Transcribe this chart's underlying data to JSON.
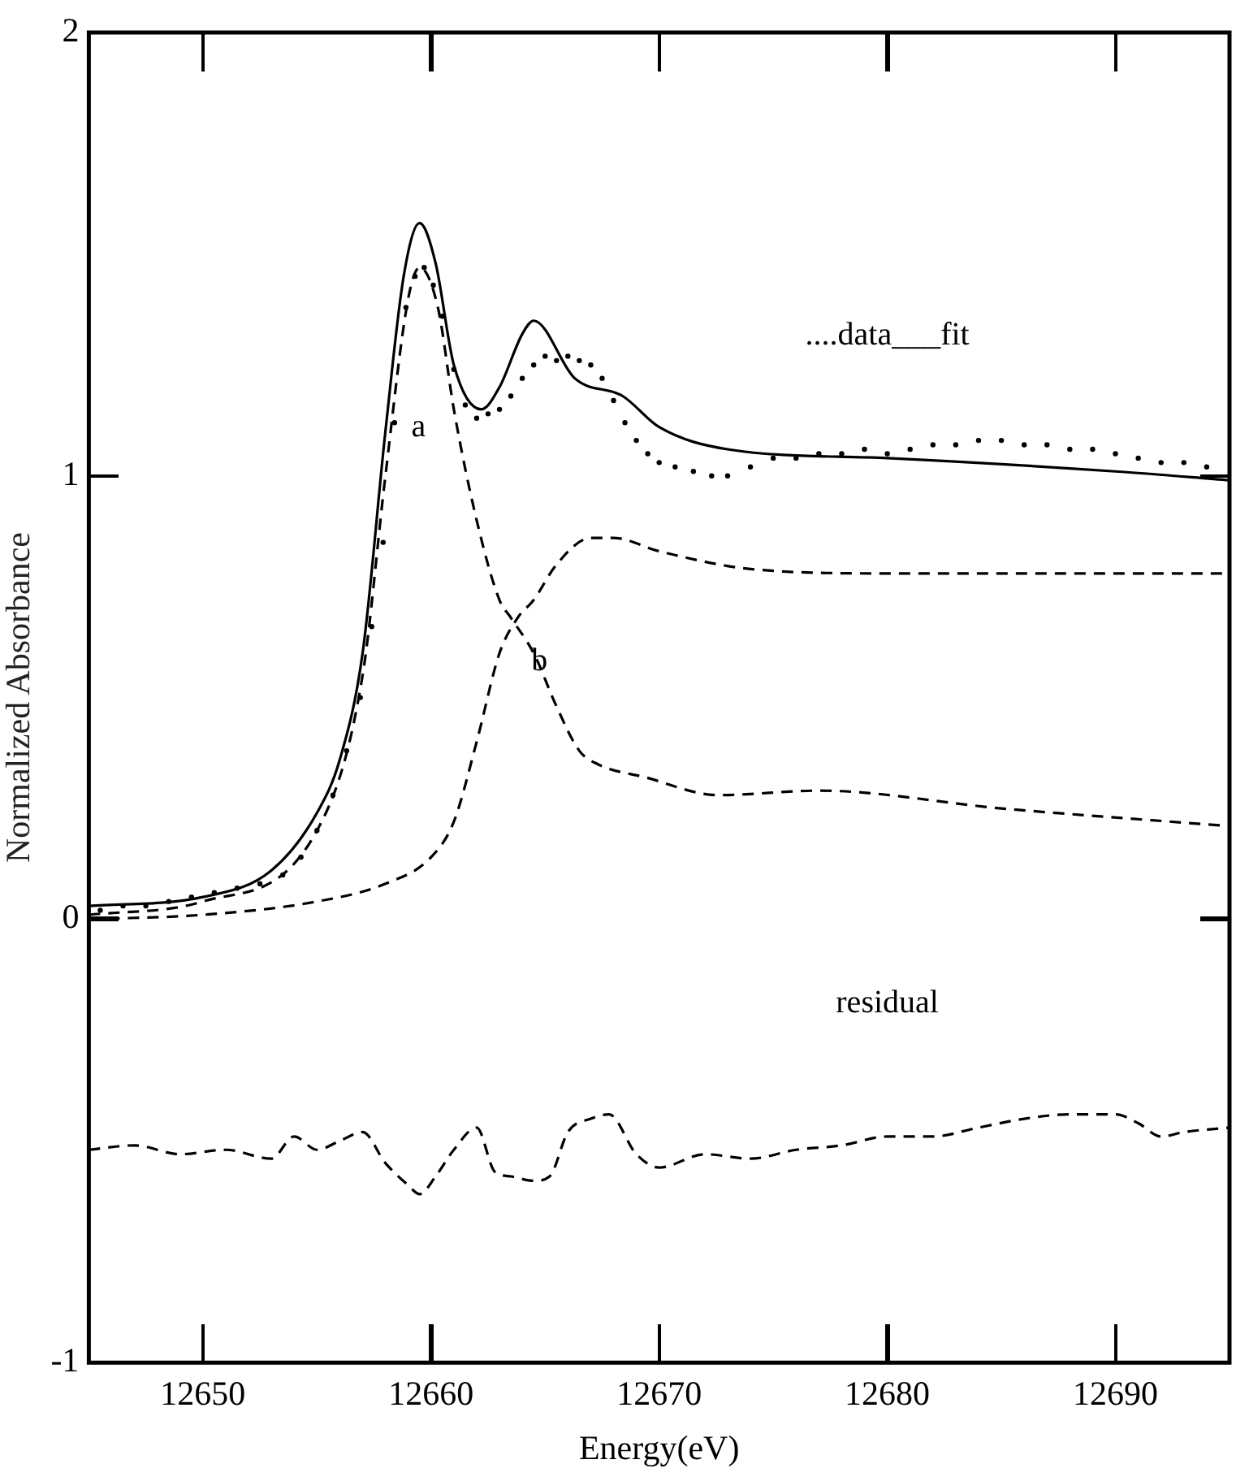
{
  "chart_data": {
    "type": "line",
    "xlabel": "Energy(eV)",
    "ylabel": "Normalized Absorbance",
    "xlim": [
      12645,
      12695
    ],
    "xticks": [
      12650,
      12660,
      12670,
      12680,
      12690
    ],
    "ylim": [
      -1,
      2
    ],
    "yticks": [
      -1,
      0,
      1,
      2
    ],
    "grid": false,
    "legend": false,
    "annotations": [
      "....data___fit",
      "a",
      "b",
      "residual"
    ],
    "series": [
      {
        "type": "scatter",
        "color": "#000000",
        "marker": "circle",
        "x": [
          12645.5,
          12646.5,
          12647.5,
          12648.5,
          12649.5,
          12650.5,
          12651.5,
          12652.5,
          12653.5,
          12654.3,
          12655,
          12655.7,
          12656.3,
          12656.9,
          12657.4,
          12657.9,
          12658.4,
          12658.9,
          12659.3,
          12659.7,
          12660.1,
          12660.5,
          12661,
          12661.5,
          12662,
          12662.5,
          12663,
          12663.5,
          12664,
          12664.5,
          12665,
          12665.5,
          12666,
          12666.5,
          12667,
          12667.5,
          12668,
          12668.5,
          12669,
          12669.5,
          12670,
          12670.7,
          12671.5,
          12672.3,
          12673,
          12674,
          12675,
          12676,
          12677,
          12678,
          12679,
          12680,
          12681,
          12682,
          12683,
          12684,
          12685,
          12686,
          12687,
          12688,
          12689,
          12690,
          12691,
          12692,
          12693,
          12694
        ],
        "values": [
          0.02,
          0.03,
          0.03,
          0.04,
          0.05,
          0.06,
          0.07,
          0.08,
          0.1,
          0.14,
          0.2,
          0.28,
          0.38,
          0.5,
          0.66,
          0.85,
          1.12,
          1.38,
          1.45,
          1.47,
          1.43,
          1.36,
          1.24,
          1.16,
          1.13,
          1.14,
          1.15,
          1.18,
          1.22,
          1.25,
          1.27,
          1.26,
          1.27,
          1.26,
          1.25,
          1.22,
          1.17,
          1.12,
          1.08,
          1.05,
          1.03,
          1.02,
          1.01,
          1.0,
          1.0,
          1.02,
          1.04,
          1.04,
          1.05,
          1.05,
          1.06,
          1.05,
          1.06,
          1.07,
          1.07,
          1.08,
          1.08,
          1.07,
          1.07,
          1.06,
          1.06,
          1.05,
          1.04,
          1.03,
          1.03,
          1.02
        ]
      },
      {
        "type": "line",
        "color": "#000000",
        "line_style": "solid",
        "x": [
          12645,
          12650,
          12653,
          12655,
          12656,
          12657,
          12658,
          12658.8,
          12659.5,
          12660.2,
          12661,
          12662.2,
          12663,
          12664,
          12664.5,
          12666.3,
          12668.4,
          12670,
          12673,
          12680,
          12690,
          12695
        ],
        "values": [
          0.03,
          0.05,
          0.11,
          0.24,
          0.36,
          0.6,
          1.1,
          1.45,
          1.57,
          1.48,
          1.25,
          1.15,
          1.2,
          1.32,
          1.35,
          1.22,
          1.18,
          1.11,
          1.06,
          1.04,
          1.01,
          0.99
        ]
      },
      {
        "type": "line",
        "color": "#000000",
        "line_style": "dashed",
        "x": [
          12645,
          12650,
          12655,
          12657,
          12658,
          12659,
          12659.5,
          12660.3,
          12661,
          12662,
          12663,
          12663.5,
          12664.5,
          12665.5,
          12666.5,
          12667.3,
          12669.4,
          12672.6,
          12677,
          12685,
          12695
        ],
        "values": [
          0.01,
          0.04,
          0.2,
          0.55,
          1.0,
          1.4,
          1.47,
          1.38,
          1.15,
          0.9,
          0.72,
          0.68,
          0.6,
          0.48,
          0.38,
          0.35,
          0.32,
          0.28,
          0.29,
          0.25,
          0.21
        ]
      },
      {
        "type": "line",
        "color": "#000000",
        "line_style": "dashed",
        "x": [
          12645,
          12650,
          12655,
          12658,
          12660,
          12661,
          12662,
          12663,
          12663.8,
          12664.5,
          12665.5,
          12667,
          12668,
          12670,
          12674,
          12680,
          12695
        ],
        "values": [
          0.0,
          0.01,
          0.04,
          0.08,
          0.14,
          0.22,
          0.4,
          0.6,
          0.68,
          0.72,
          0.8,
          0.86,
          0.86,
          0.83,
          0.79,
          0.78,
          0.78
        ]
      },
      {
        "type": "line",
        "color": "#000000",
        "line_style": "dashed",
        "x": [
          12645,
          12647,
          12649,
          12651,
          12653,
          12654,
          12655,
          12656,
          12657,
          12658,
          12659,
          12659.5,
          12660.2,
          12661,
          12662,
          12662.8,
          12663.5,
          12664.5,
          12665.2,
          12666,
          12667,
          12667.8,
          12669,
          12670,
          12672,
          12674,
          12676,
          12678,
          12680,
          12682,
          12684,
          12686,
          12688,
          12690,
          12691,
          12692,
          12693,
          12695
        ],
        "values": [
          -0.52,
          -0.51,
          -0.53,
          -0.52,
          -0.54,
          -0.49,
          -0.52,
          -0.5,
          -0.48,
          -0.55,
          -0.6,
          -0.62,
          -0.58,
          -0.52,
          -0.47,
          -0.57,
          -0.58,
          -0.59,
          -0.58,
          -0.48,
          -0.45,
          -0.44,
          -0.53,
          -0.56,
          -0.53,
          -0.54,
          -0.52,
          -0.51,
          -0.49,
          -0.49,
          -0.47,
          -0.45,
          -0.44,
          -0.44,
          -0.46,
          -0.49,
          -0.48,
          -0.47
        ]
      }
    ]
  }
}
